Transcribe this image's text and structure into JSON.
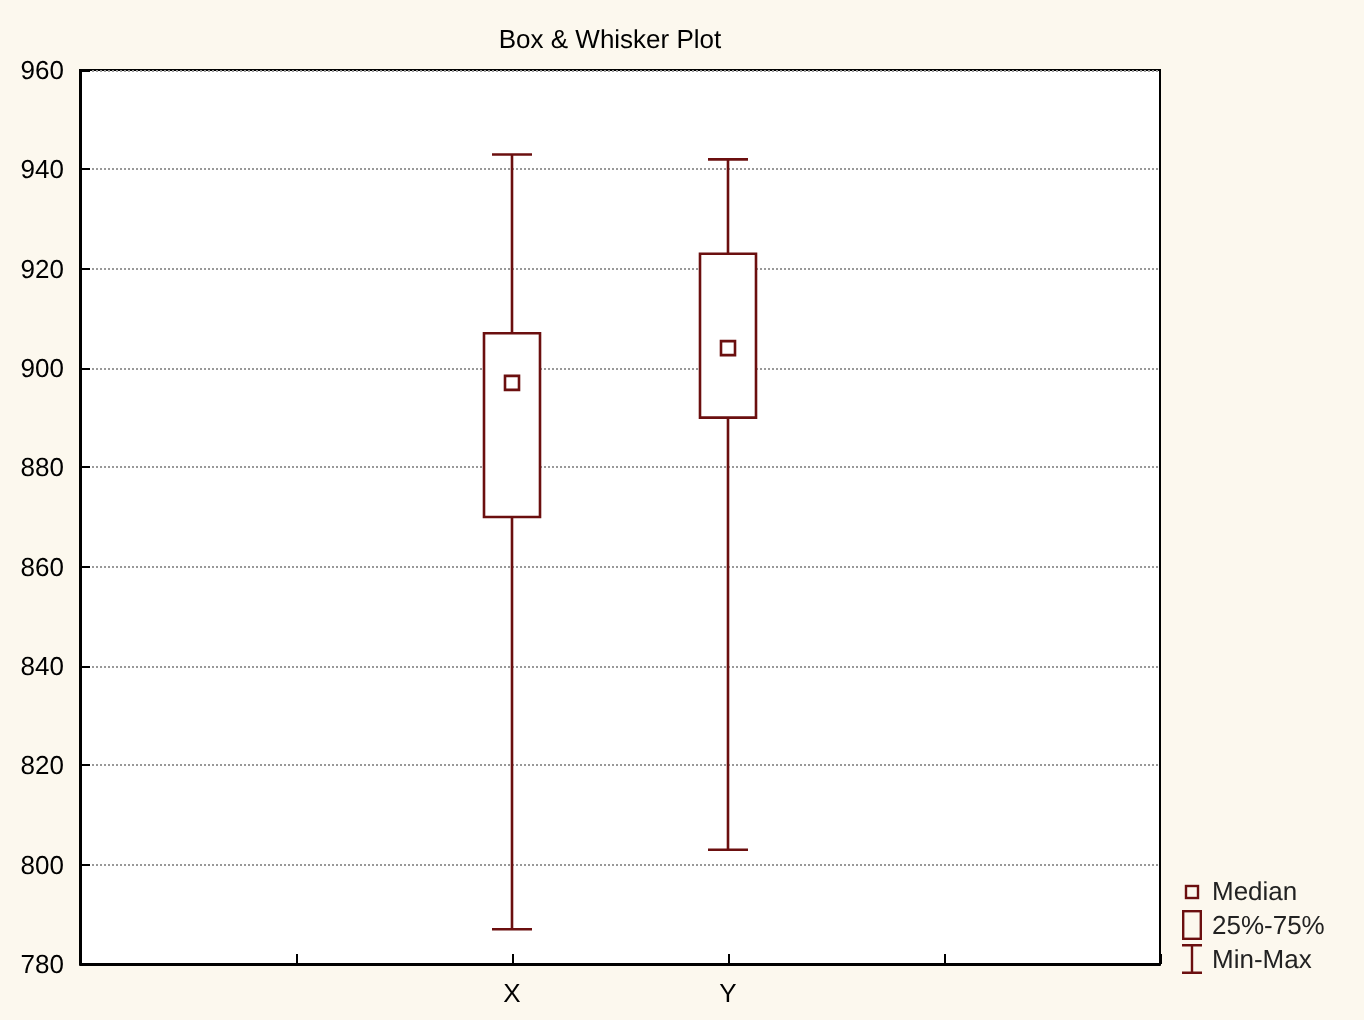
{
  "chart_data": {
    "type": "box",
    "title": "Box & Whisker Plot",
    "categories": [
      null,
      null,
      "X",
      "Y",
      null,
      null
    ],
    "boxes": [
      null,
      null,
      {
        "low": 787,
        "q1": 870,
        "median": 897,
        "q3": 907,
        "high": 943
      },
      {
        "low": 803,
        "q1": 890,
        "median": 904,
        "q3": 923,
        "high": 942
      },
      null,
      null
    ],
    "color": "#6b0f0f",
    "ylim": [
      780,
      960
    ],
    "yticks": [
      780,
      800,
      820,
      840,
      860,
      880,
      900,
      920,
      940,
      960
    ],
    "grid": "y",
    "annotations": [
      "Median",
      "25%-75%",
      "Min-Max"
    ]
  }
}
